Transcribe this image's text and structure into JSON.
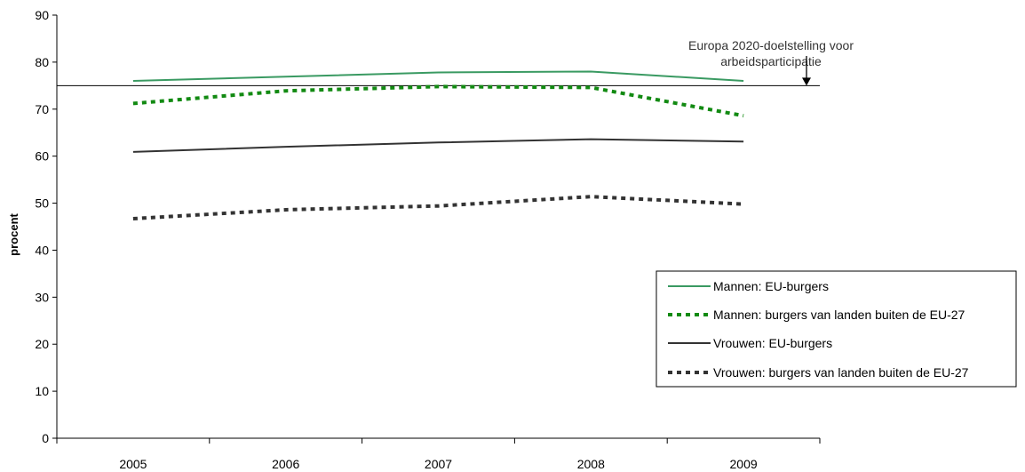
{
  "chart_data": {
    "type": "line",
    "title": "",
    "xlabel": "",
    "ylabel": "procent",
    "ylim": [
      0,
      90
    ],
    "yticks": [
      0,
      10,
      20,
      30,
      40,
      50,
      60,
      70,
      80,
      90
    ],
    "categories": [
      "2005",
      "2006",
      "2007",
      "2008",
      "2009"
    ],
    "grid": false,
    "legend_position": "bottom-right",
    "reference_line": {
      "value": 75,
      "label_lines": [
        "Europa 2020-doelstelling voor",
        "arbeidsparticipatie"
      ]
    },
    "series": [
      {
        "name": "Mannen: EU-burgers",
        "values": [
          76.0,
          76.9,
          77.8,
          78.0,
          76.0
        ],
        "color": "#3a9a62",
        "dash": "solid"
      },
      {
        "name": "Mannen: burgers van landen buiten de EU-27",
        "values": [
          71.2,
          73.9,
          74.8,
          74.6,
          68.6
        ],
        "color": "#128a12",
        "dash": "dashed"
      },
      {
        "name": "Vrouwen: EU-burgers",
        "values": [
          60.9,
          62.0,
          62.9,
          63.6,
          63.1
        ],
        "color": "#333333",
        "dash": "solid"
      },
      {
        "name": "Vrouwen: burgers van landen buiten de EU-27",
        "values": [
          46.7,
          48.6,
          49.4,
          51.4,
          49.8
        ],
        "color": "#333333",
        "dash": "dashed"
      }
    ]
  }
}
